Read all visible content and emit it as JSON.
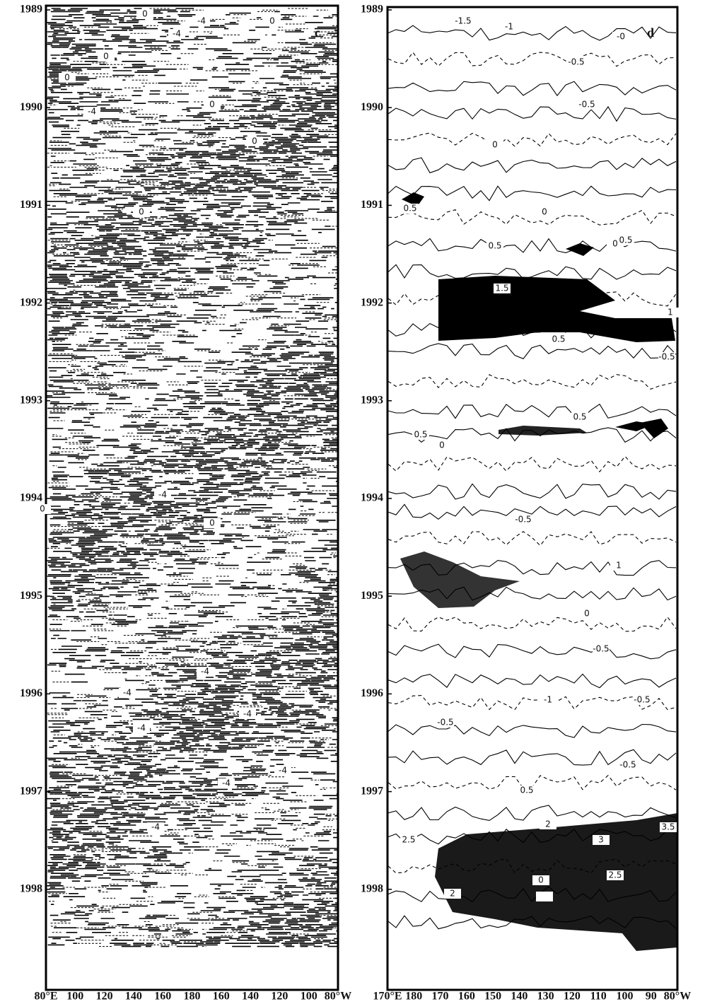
{
  "panels": [
    {
      "label": "c",
      "y_ticks": [
        "1989",
        "1990",
        "1991",
        "1992",
        "1993",
        "1994",
        "1995",
        "1996",
        "1997",
        "1998"
      ],
      "x_ticks": [
        "80°E",
        "100",
        "120",
        "140",
        "160",
        "180",
        "160",
        "140",
        "120",
        "100",
        "80°W"
      ],
      "contour_labels": [
        "0",
        "-4",
        "-4",
        "0",
        "0",
        "0",
        "0",
        "-4",
        "0",
        "0",
        "-4",
        "0",
        "0",
        "-4",
        "-4",
        "-4",
        "-4",
        "-4",
        "-4",
        "-4"
      ]
    },
    {
      "label": "d",
      "y_ticks": [
        "1989",
        "1990",
        "1991",
        "1992",
        "1993",
        "1994",
        "1995",
        "1996",
        "1997",
        "1998"
      ],
      "x_ticks": [
        "170°E",
        "180",
        "170",
        "160",
        "150",
        "140",
        "130",
        "120",
        "110",
        "100",
        "90",
        "80°W"
      ],
      "contour_labels": [
        "-1.5",
        "-1",
        "-0",
        "-0.5",
        "-0.5",
        "0",
        "0",
        "0",
        "0.5",
        "0.5",
        "0.5",
        "1.5",
        "1",
        "0.5",
        "-0.5",
        "0.5",
        "0.5",
        "0",
        "-0.5",
        "1",
        "0",
        "-0.5",
        "-0.5",
        "-1",
        "-0.5",
        "-0.5",
        "0.5",
        "2.5",
        "2",
        "3.5",
        "3",
        "2.5",
        "0",
        "2"
      ]
    }
  ]
}
